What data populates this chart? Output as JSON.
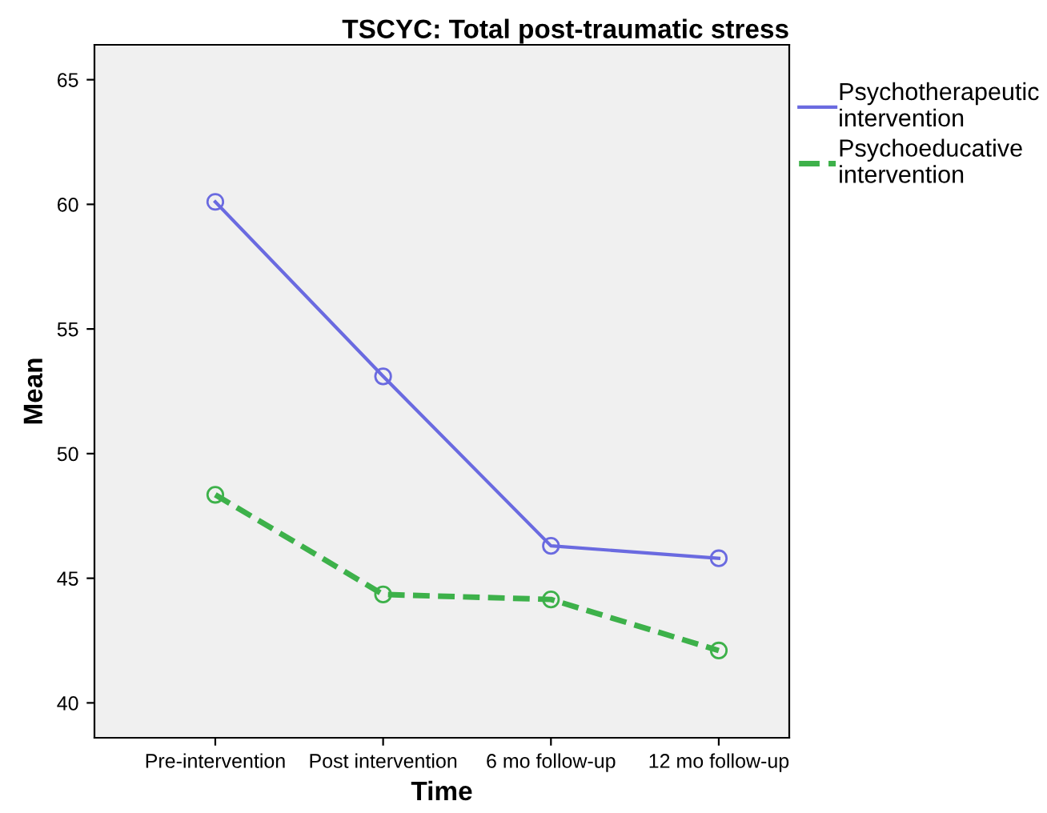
{
  "chart_data": {
    "type": "line",
    "title": "TSCYC: Total post-traumatic stress",
    "xlabel": "Time",
    "ylabel": "Mean",
    "categories": [
      "Pre-intervention",
      "Post intervention",
      "6 mo follow-up",
      "12 mo follow-up"
    ],
    "series": [
      {
        "name": "Psychotherapeutic\nintervention",
        "color": "#6a6ae0",
        "values": [
          60.1,
          53.1,
          46.3,
          45.8
        ],
        "line_style": "solid"
      },
      {
        "name": "Psychoeducative\nintervention",
        "color": "#3db14a",
        "values": [
          48.35,
          44.35,
          44.15,
          42.1
        ],
        "line_style": "dashed"
      }
    ],
    "ylim": [
      38.6,
      66.4
    ],
    "yticks": [
      40,
      45,
      50,
      55,
      60,
      65
    ],
    "marker": "circle",
    "legend": "top right",
    "grid": false
  }
}
